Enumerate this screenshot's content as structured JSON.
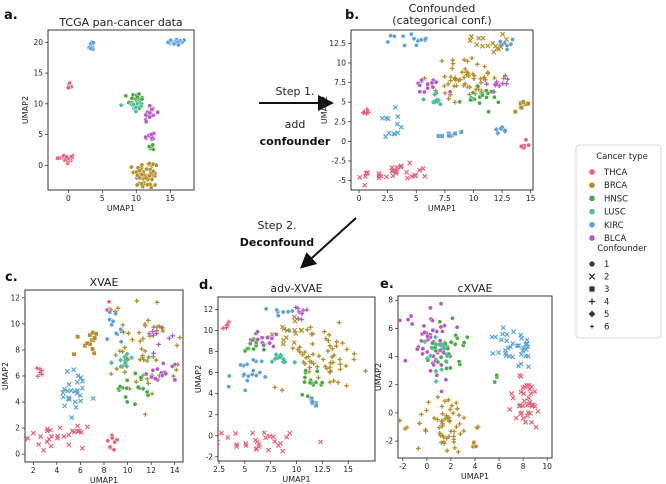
{
  "colors": {
    "THCA": "#e8627b",
    "BRCA": "#b58f2e",
    "HNSC": "#4aaa45",
    "LUSC": "#4fbfa0",
    "KIRC": "#5ba3d8",
    "BLCA": "#b65bc4"
  },
  "annotations": {
    "step1": "Step 1.",
    "add": "add",
    "confounder": "confounder",
    "step2": "Step 2.",
    "deconfound": "Deconfound"
  },
  "legend": {
    "cancer_title": "Cancer type",
    "cancer_types": [
      "THCA",
      "BRCA",
      "HNSC",
      "LUSC",
      "KIRC",
      "BLCA"
    ],
    "confounder_title": "Confounder",
    "confounders": [
      {
        "label": "1",
        "marker": "circle"
      },
      {
        "label": "2",
        "marker": "x"
      },
      {
        "label": "3",
        "marker": "square"
      },
      {
        "label": "4",
        "marker": "plus"
      },
      {
        "label": "5",
        "marker": "diamond"
      },
      {
        "label": "6",
        "marker": "small-plus"
      }
    ]
  },
  "chart_data": [
    {
      "id": "a",
      "panel_label": "a.",
      "type": "scatter",
      "title": "TCGA pan-cancer data",
      "xlabel": "UMAP1",
      "ylabel": "UMAP2",
      "xlim": [
        -3,
        18.5
      ],
      "ylim": [
        -4,
        22
      ],
      "xticks": [
        0,
        5,
        10,
        15
      ],
      "yticks": [
        0,
        5,
        10,
        15,
        20
      ],
      "clusters": [
        {
          "type": "THCA",
          "cx": 0,
          "cy": 13,
          "sx": 0.15,
          "sy": 0.3,
          "n": 6,
          "marker": "circle"
        },
        {
          "type": "THCA",
          "cx": -0.3,
          "cy": 1,
          "sx": 0.7,
          "sy": 0.4,
          "n": 25,
          "marker": "circle"
        },
        {
          "type": "KIRC",
          "cx": 3.5,
          "cy": 19.5,
          "sx": 0.3,
          "sy": 0.4,
          "n": 10,
          "marker": "circle"
        },
        {
          "type": "KIRC",
          "cx": 16,
          "cy": 20,
          "sx": 0.7,
          "sy": 0.25,
          "n": 22,
          "marker": "circle"
        },
        {
          "type": "HNSC",
          "cx": 10,
          "cy": 10.5,
          "sx": 0.6,
          "sy": 0.7,
          "n": 28,
          "marker": "circle"
        },
        {
          "type": "LUSC",
          "cx": 9.8,
          "cy": 9.5,
          "sx": 0.5,
          "sy": 0.6,
          "n": 12,
          "marker": "circle"
        },
        {
          "type": "BLCA",
          "cx": 12,
          "cy": 8.5,
          "sx": 0.5,
          "sy": 0.8,
          "n": 18,
          "marker": "circle"
        },
        {
          "type": "BLCA",
          "cx": 12,
          "cy": 4.5,
          "sx": 0.4,
          "sy": 0.5,
          "n": 10,
          "marker": "circle"
        },
        {
          "type": "HNSC",
          "cx": 12.3,
          "cy": 3,
          "sx": 0.4,
          "sy": 0.3,
          "n": 8,
          "marker": "circle"
        },
        {
          "type": "BRCA",
          "cx": 11.5,
          "cy": -1.5,
          "sx": 0.9,
          "sy": 1.2,
          "n": 55,
          "marker": "circle"
        }
      ]
    },
    {
      "id": "b",
      "panel_label": "b.",
      "type": "scatter",
      "title": "Confounded\n(categorical conf.)",
      "xlabel": "UMAP1",
      "ylabel": "UMAP2",
      "xlim": [
        -0.7,
        15.2
      ],
      "ylim": [
        -6.2,
        14.2
      ],
      "xticks": [
        0.0,
        2.5,
        5.0,
        7.5,
        10.0,
        12.5,
        15.0
      ],
      "yticks": [
        -5.0,
        -2.5,
        0.0,
        2.5,
        5.0,
        7.5,
        10.0,
        12.5
      ],
      "clusters": [
        {
          "type": "THCA",
          "cx": 3,
          "cy": -4.2,
          "sx": 1.6,
          "sy": 0.6,
          "n": 30,
          "marker": "x"
        },
        {
          "type": "THCA",
          "cx": 0.6,
          "cy": 3.8,
          "sx": 0.2,
          "sy": 0.3,
          "n": 5,
          "marker": "plus"
        },
        {
          "type": "THCA",
          "cx": 14.4,
          "cy": -0.5,
          "sx": 0.3,
          "sy": 0.3,
          "n": 6,
          "marker": "circle"
        },
        {
          "type": "KIRC",
          "cx": 4.5,
          "cy": 13,
          "sx": 0.8,
          "sy": 0.4,
          "n": 14,
          "marker": "circle"
        },
        {
          "type": "KIRC",
          "cx": 2.5,
          "cy": 2,
          "sx": 0.5,
          "sy": 1.0,
          "n": 12,
          "marker": "x"
        },
        {
          "type": "KIRC",
          "cx": 8,
          "cy": 0.8,
          "sx": 0.6,
          "sy": 0.4,
          "n": 10,
          "marker": "square"
        },
        {
          "type": "KIRC",
          "cx": 12.5,
          "cy": 1.5,
          "sx": 0.3,
          "sy": 0.6,
          "n": 6,
          "marker": "diamond"
        },
        {
          "type": "KIRC",
          "cx": 13.2,
          "cy": 12.5,
          "sx": 0.4,
          "sy": 0.5,
          "n": 8,
          "marker": "circle"
        },
        {
          "type": "BRCA",
          "cx": 9.5,
          "cy": 8,
          "sx": 1.5,
          "sy": 1.3,
          "n": 60,
          "marker": "plus"
        },
        {
          "type": "BRCA",
          "cx": 11,
          "cy": 12.5,
          "sx": 0.8,
          "sy": 0.6,
          "n": 15,
          "marker": "x"
        },
        {
          "type": "BRCA",
          "cx": 14.3,
          "cy": 4.5,
          "sx": 0.4,
          "sy": 0.4,
          "n": 8,
          "marker": "square"
        },
        {
          "type": "HNSC",
          "cx": 10.5,
          "cy": 5.5,
          "sx": 0.9,
          "sy": 0.6,
          "n": 20,
          "marker": "circle"
        },
        {
          "type": "LUSC",
          "cx": 6.5,
          "cy": 5.5,
          "sx": 0.5,
          "sy": 0.5,
          "n": 10,
          "marker": "diamond"
        },
        {
          "type": "BLCA",
          "cx": 6,
          "cy": 7,
          "sx": 0.7,
          "sy": 0.6,
          "n": 14,
          "marker": "circle"
        },
        {
          "type": "BLCA",
          "cx": 12.2,
          "cy": 7.5,
          "sx": 0.5,
          "sy": 0.5,
          "n": 10,
          "marker": "plus"
        }
      ]
    },
    {
      "id": "c",
      "panel_label": "c.",
      "type": "scatter",
      "title": "XVAE",
      "xlabel": "UMAP1",
      "ylabel": "UMAP2",
      "xlim": [
        1.3,
        14.7
      ],
      "ylim": [
        -0.6,
        12.6
      ],
      "xticks": [
        2,
        4,
        6,
        8,
        10,
        12,
        14
      ],
      "yticks": [
        0,
        2,
        4,
        6,
        8,
        10,
        12
      ],
      "clusters": [
        {
          "type": "THCA",
          "cx": 4,
          "cy": 1.3,
          "sx": 1.2,
          "sy": 0.4,
          "n": 28,
          "marker": "x"
        },
        {
          "type": "THCA",
          "cx": 2.7,
          "cy": 6.3,
          "sx": 0.3,
          "sy": 0.2,
          "n": 6,
          "marker": "plus"
        },
        {
          "type": "THCA",
          "cx": 8.8,
          "cy": 0.8,
          "sx": 0.3,
          "sy": 0.3,
          "n": 8,
          "marker": "circle"
        },
        {
          "type": "THCA",
          "cx": 8.4,
          "cy": 11.5,
          "sx": 0.2,
          "sy": 0.4,
          "n": 5,
          "marker": "circle"
        },
        {
          "type": "KIRC",
          "cx": 5.5,
          "cy": 4.5,
          "sx": 0.9,
          "sy": 1.0,
          "n": 26,
          "marker": "x"
        },
        {
          "type": "KIRC",
          "cx": 9,
          "cy": 9.5,
          "sx": 0.5,
          "sy": 1.0,
          "n": 12,
          "marker": "circle"
        },
        {
          "type": "BRCA",
          "cx": 11.5,
          "cy": 8,
          "sx": 1.4,
          "sy": 1.8,
          "n": 55,
          "marker": "plus"
        },
        {
          "type": "BRCA",
          "cx": 6.5,
          "cy": 8.8,
          "sx": 0.5,
          "sy": 0.6,
          "n": 14,
          "marker": "square"
        },
        {
          "type": "HNSC",
          "cx": 10.5,
          "cy": 5,
          "sx": 0.8,
          "sy": 0.6,
          "n": 18,
          "marker": "circle"
        },
        {
          "type": "LUSC",
          "cx": 10,
          "cy": 7.5,
          "sx": 0.6,
          "sy": 0.5,
          "n": 10,
          "marker": "diamond"
        },
        {
          "type": "BLCA",
          "cx": 13,
          "cy": 6.2,
          "sx": 0.7,
          "sy": 0.5,
          "n": 14,
          "marker": "circle"
        },
        {
          "type": "BLCA",
          "cx": 12.5,
          "cy": 9.3,
          "sx": 0.6,
          "sy": 0.4,
          "n": 10,
          "marker": "plus"
        }
      ]
    },
    {
      "id": "d",
      "panel_label": "d.",
      "type": "scatter",
      "title": "adv-XVAE",
      "xlabel": "UMAP1",
      "ylabel": "UMAP2",
      "xlim": [
        2.4,
        17.6
      ],
      "ylim": [
        -2.4,
        13.2
      ],
      "xticks": [
        2.5,
        5.0,
        7.5,
        10.0,
        12.5,
        15.0
      ],
      "yticks": [
        -2,
        0,
        2,
        4,
        6,
        8,
        10,
        12
      ],
      "clusters": [
        {
          "type": "THCA",
          "cx": 6.5,
          "cy": -0.5,
          "sx": 2.0,
          "sy": 0.5,
          "n": 30,
          "marker": "x"
        },
        {
          "type": "THCA",
          "cx": 3.3,
          "cy": 10.5,
          "sx": 0.3,
          "sy": 0.3,
          "n": 5,
          "marker": "plus"
        },
        {
          "type": "KIRC",
          "cx": 5,
          "cy": 5.5,
          "sx": 0.8,
          "sy": 1.0,
          "n": 18,
          "marker": "circle"
        },
        {
          "type": "KIRC",
          "cx": 11.5,
          "cy": 3,
          "sx": 0.3,
          "sy": 0.4,
          "n": 6,
          "marker": "square"
        },
        {
          "type": "KIRC",
          "cx": 8.5,
          "cy": 11.5,
          "sx": 0.6,
          "sy": 0.5,
          "n": 8,
          "marker": "circle"
        },
        {
          "type": "BRCA",
          "cx": 12.5,
          "cy": 7.5,
          "sx": 2.2,
          "sy": 1.5,
          "n": 60,
          "marker": "plus"
        },
        {
          "type": "BRCA",
          "cx": 9.5,
          "cy": 10,
          "sx": 0.8,
          "sy": 0.8,
          "n": 14,
          "marker": "x"
        },
        {
          "type": "HNSC",
          "cx": 11.5,
          "cy": 5,
          "sx": 0.6,
          "sy": 0.5,
          "n": 14,
          "marker": "circle"
        },
        {
          "type": "HNSC",
          "cx": 5.5,
          "cy": 8.5,
          "sx": 0.6,
          "sy": 0.5,
          "n": 12,
          "marker": "circle"
        },
        {
          "type": "LUSC",
          "cx": 8.5,
          "cy": 7,
          "sx": 0.6,
          "sy": 0.5,
          "n": 10,
          "marker": "diamond"
        },
        {
          "type": "BLCA",
          "cx": 7,
          "cy": 9.3,
          "sx": 0.6,
          "sy": 0.5,
          "n": 12,
          "marker": "circle"
        },
        {
          "type": "BLCA",
          "cx": 10.5,
          "cy": 11.5,
          "sx": 0.5,
          "sy": 0.4,
          "n": 8,
          "marker": "plus"
        }
      ]
    },
    {
      "id": "e",
      "panel_label": "e.",
      "type": "scatter",
      "title": "cXVAE",
      "xlabel": "UMAP1",
      "ylabel": "UMAP2",
      "xlim": [
        -2.4,
        10.4
      ],
      "ylim": [
        -3.2,
        8.3
      ],
      "xticks": [
        -2,
        0,
        2,
        4,
        6,
        8,
        10
      ],
      "yticks": [
        -2,
        0,
        2,
        4,
        6,
        8
      ],
      "clusters": [
        {
          "type": "BLCA",
          "cx": 0.3,
          "cy": 5.2,
          "sx": 1.0,
          "sy": 1.4,
          "n": 55,
          "marker": "circle"
        },
        {
          "type": "HNSC",
          "cx": 1.8,
          "cy": 5,
          "sx": 0.7,
          "sy": 1.3,
          "n": 30,
          "marker": "circle"
        },
        {
          "type": "LUSC",
          "cx": 1.2,
          "cy": 4,
          "sx": 0.6,
          "sy": 0.8,
          "n": 14,
          "marker": "diamond"
        },
        {
          "type": "BRCA",
          "cx": 1.5,
          "cy": -0.8,
          "sx": 1.2,
          "sy": 1.1,
          "n": 60,
          "marker": "plus"
        },
        {
          "type": "KIRC",
          "cx": 7.3,
          "cy": 4.6,
          "sx": 0.8,
          "sy": 0.7,
          "n": 35,
          "marker": "x"
        },
        {
          "type": "THCA",
          "cx": 8.2,
          "cy": 0.6,
          "sx": 0.8,
          "sy": 1.0,
          "n": 38,
          "marker": "x"
        },
        {
          "type": "BRCA",
          "cx": 4,
          "cy": -2,
          "sx": 0.2,
          "sy": 0.3,
          "n": 4,
          "marker": "circle"
        },
        {
          "type": "HNSC",
          "cx": 5.7,
          "cy": 2.4,
          "sx": 0.2,
          "sy": 0.2,
          "n": 3,
          "marker": "circle"
        }
      ]
    }
  ]
}
